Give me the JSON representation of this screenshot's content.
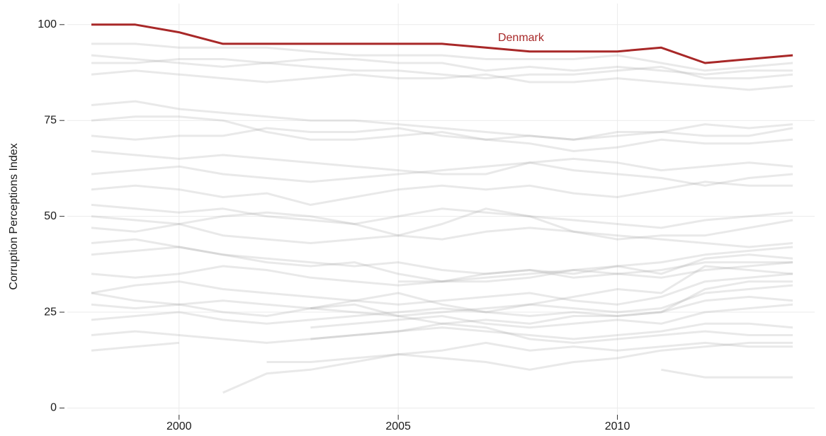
{
  "chart_data": {
    "type": "line",
    "y_label": "Corruption Perceptions Index",
    "x": [
      1998,
      1999,
      2000,
      2001,
      2002,
      2003,
      2004,
      2005,
      2006,
      2007,
      2008,
      2009,
      2010,
      2011,
      2012,
      2013,
      2014
    ],
    "xlim": [
      1997.45,
      2014.5
    ],
    "xticks": [
      2000,
      2005,
      2010
    ],
    "ylim": [
      -2.5,
      105.5
    ],
    "yticks": [
      0,
      25,
      50,
      75,
      100
    ],
    "grid": true,
    "series": [
      {
        "color": "#9a9a9a",
        "values": [
          95,
          95,
          94,
          94,
          94,
          93,
          92,
          92,
          92,
          91,
          91,
          91,
          92,
          90,
          88,
          89,
          90
        ]
      },
      {
        "color": "#9a9a9a",
        "values": [
          90,
          90,
          91,
          91,
          90,
          89,
          88,
          88,
          87,
          86,
          87,
          87,
          88,
          89,
          86,
          86,
          87
        ]
      },
      {
        "color": "#9a9a9a",
        "values": [
          87,
          88,
          87,
          86,
          85,
          86,
          87,
          86,
          86,
          87,
          85,
          85,
          86,
          85,
          84,
          83,
          84
        ]
      },
      {
        "color": "#9a9a9a",
        "values": [
          79,
          80,
          78,
          77,
          76,
          75,
          75,
          74,
          73,
          72,
          71,
          70,
          72,
          72,
          71,
          71,
          73
        ]
      },
      {
        "color": "#9a9a9a",
        "values": [
          75,
          76,
          76,
          75,
          72,
          70,
          70,
          71,
          72,
          70,
          69,
          67,
          68,
          70,
          69,
          69,
          70
        ]
      },
      {
        "color": "#9a9a9a",
        "values": [
          67,
          66,
          65,
          66,
          65,
          64,
          63,
          62,
          61,
          61,
          64,
          65,
          64,
          62,
          63,
          64,
          63
        ]
      },
      {
        "color": "#9a9a9a",
        "values": [
          61,
          62,
          63,
          61,
          60,
          59,
          60,
          61,
          62,
          63,
          64,
          62,
          61,
          60,
          58,
          60,
          61
        ]
      },
      {
        "color": "#9a9a9a",
        "values": [
          53,
          52,
          51,
          52,
          50,
          49,
          48,
          50,
          52,
          51,
          50,
          49,
          48,
          47,
          49,
          50,
          51
        ]
      },
      {
        "color": "#9a9a9a",
        "values": [
          47,
          46,
          48,
          45,
          44,
          43,
          44,
          45,
          44,
          46,
          47,
          46,
          45,
          44,
          43,
          42,
          43
        ]
      },
      {
        "color": "#9a9a9a",
        "values": [
          40,
          41,
          42,
          40,
          39,
          38,
          37,
          38,
          36,
          35,
          36,
          35,
          37,
          38,
          40,
          41,
          42
        ]
      },
      {
        "color": "#9a9a9a",
        "values": [
          35,
          34,
          35,
          37,
          36,
          34,
          33,
          32,
          33,
          34,
          35,
          36,
          35,
          34,
          36,
          37,
          38
        ]
      },
      {
        "color": "#9a9a9a",
        "values": [
          30,
          32,
          33,
          31,
          30,
          29,
          28,
          27,
          28,
          29,
          30,
          28,
          27,
          29,
          33,
          34,
          35
        ]
      },
      {
        "color": "#9a9a9a",
        "values": [
          27,
          26,
          27,
          28,
          27,
          26,
          25,
          24,
          25,
          26,
          27,
          26,
          25,
          26,
          30,
          31,
          32
        ]
      },
      {
        "color": "#9a9a9a",
        "values": [
          23,
          24,
          25,
          23,
          22,
          23,
          24,
          25,
          26,
          25,
          24,
          25,
          24,
          25,
          28,
          29,
          28
        ]
      },
      {
        "color": "#9a9a9a",
        "values": [
          null,
          null,
          null,
          null,
          null,
          21,
          22,
          23,
          24,
          22,
          21,
          22,
          23,
          22,
          25,
          26,
          27
        ]
      },
      {
        "color": "#9a9a9a",
        "values": [
          null,
          null,
          null,
          null,
          null,
          18,
          19,
          20,
          21,
          20,
          19,
          18,
          19,
          20,
          22,
          22,
          21
        ]
      },
      {
        "color": "#9a9a9a",
        "values": [
          19,
          20,
          19,
          18,
          17,
          18,
          19,
          20,
          22,
          21,
          18,
          17,
          18,
          19,
          20,
          19,
          19
        ]
      },
      {
        "color": "#9a9a9a",
        "values": [
          15,
          16,
          17,
          null,
          12,
          12,
          13,
          14,
          15,
          17,
          15,
          16,
          15,
          16,
          17,
          16,
          16
        ]
      },
      {
        "color": "#9a9a9a",
        "values": [
          null,
          null,
          null,
          4,
          9,
          10,
          12,
          14,
          13,
          12,
          10,
          12,
          13,
          15,
          16,
          17,
          17
        ]
      },
      {
        "color": "#9a9a9a",
        "values": [
          null,
          null,
          null,
          null,
          null,
          null,
          null,
          null,
          null,
          null,
          null,
          null,
          null,
          10,
          8,
          8,
          8
        ]
      },
      {
        "color": "#9a9a9a",
        "values": [
          null,
          null,
          null,
          null,
          null,
          null,
          null,
          33,
          33,
          35,
          36,
          34,
          35,
          36,
          38,
          38,
          38
        ]
      },
      {
        "color": "#9a9a9a",
        "values": [
          null,
          null,
          null,
          null,
          null,
          26,
          28,
          30,
          27,
          25,
          27,
          29,
          31,
          30,
          37,
          36,
          35
        ]
      },
      {
        "color": "#9a9a9a",
        "values": [
          50,
          49,
          48,
          50,
          51,
          50,
          48,
          45,
          48,
          52,
          50,
          46,
          44,
          45,
          45,
          47,
          49
        ]
      },
      {
        "color": "#9a9a9a",
        "values": [
          57,
          58,
          57,
          55,
          56,
          53,
          55,
          57,
          58,
          57,
          58,
          56,
          55,
          57,
          59,
          58,
          58
        ]
      },
      {
        "color": "#9a9a9a",
        "values": [
          92,
          91,
          90,
          89,
          90,
          91,
          91,
          90,
          90,
          88,
          89,
          88,
          89,
          88,
          87,
          88,
          88
        ]
      },
      {
        "color": "#9a9a9a",
        "values": [
          71,
          70,
          71,
          71,
          73,
          72,
          72,
          73,
          71,
          70,
          71,
          70,
          71,
          72,
          74,
          73,
          74
        ]
      },
      {
        "color": "#9a9a9a",
        "values": [
          43,
          44,
          42,
          40,
          38,
          37,
          38,
          35,
          33,
          33,
          34,
          36,
          37,
          35,
          39,
          40,
          39
        ]
      },
      {
        "color": "#9a9a9a",
        "values": [
          30,
          28,
          27,
          25,
          24,
          26,
          27,
          24,
          22,
          23,
          22,
          24,
          24,
          25,
          31,
          33,
          33
        ]
      },
      {
        "name": "Denmark",
        "color": "#a82828",
        "values": [
          100,
          100,
          98,
          95,
          95,
          95,
          95,
          95,
          95,
          94,
          93,
          93,
          93,
          94,
          90,
          91,
          92
        ]
      }
    ]
  }
}
